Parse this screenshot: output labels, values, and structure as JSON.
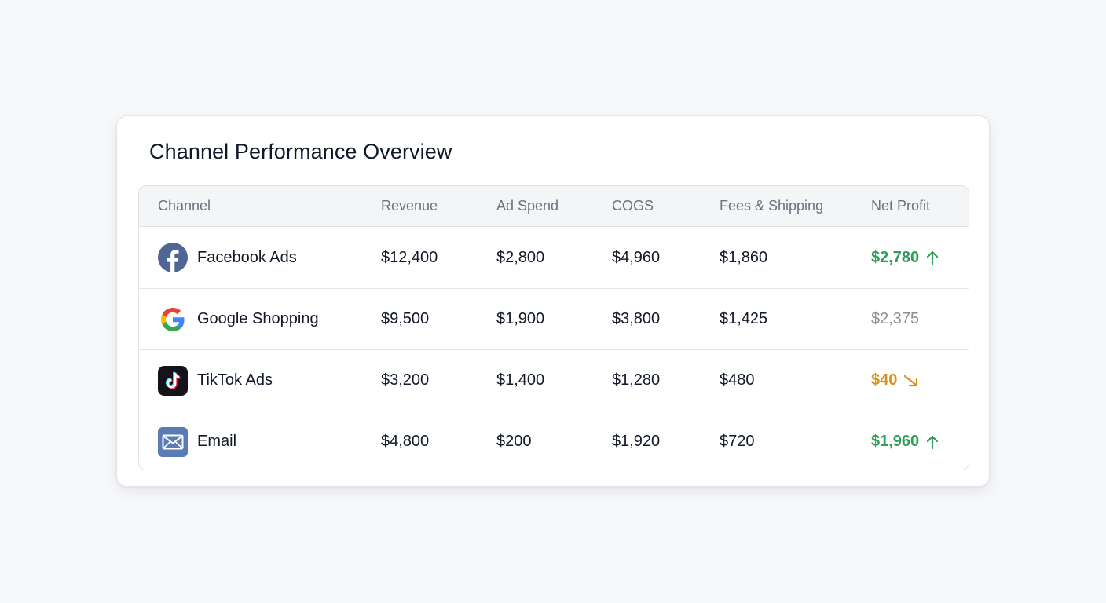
{
  "card": {
    "title": "Channel Performance Overview"
  },
  "table": {
    "columns": [
      "Channel",
      "Revenue",
      "Ad Spend",
      "COGS",
      "Fees & Shipping",
      "Net Profit"
    ],
    "rows": [
      {
        "channel": "Facebook Ads",
        "icon": "facebook-icon",
        "revenue": "$12,400",
        "ad_spend": "$2,800",
        "cogs": "$4,960",
        "fees_shipping": "$1,860",
        "net_profit": "$2,780",
        "trend": "arrow-up-icon",
        "status": "up"
      },
      {
        "channel": "Google Shopping",
        "icon": "google-icon",
        "revenue": "$9,500",
        "ad_spend": "$1,900",
        "cogs": "$3,800",
        "fees_shipping": "$1,425",
        "net_profit": "$2,375",
        "trend": "",
        "status": "neutral"
      },
      {
        "channel": "TikTok Ads",
        "icon": "tiktok-icon",
        "revenue": "$3,200",
        "ad_spend": "$1,400",
        "cogs": "$1,280",
        "fees_shipping": "$480",
        "net_profit": "$40",
        "trend": "arrow-down-right-icon",
        "status": "warning"
      },
      {
        "channel": "Email",
        "icon": "email-icon",
        "revenue": "$4,800",
        "ad_spend": "$200",
        "cogs": "$1,920",
        "fees_shipping": "$720",
        "net_profit": "$1,960",
        "trend": "arrow-up-icon",
        "status": "up"
      }
    ]
  },
  "colors": {
    "profit_up": "#2f9e5b",
    "profit_neutral": "#8a8f98",
    "profit_warning": "#d4921a",
    "facebook_brand": "#4f6596",
    "email_brand": "#5a7bb5"
  }
}
